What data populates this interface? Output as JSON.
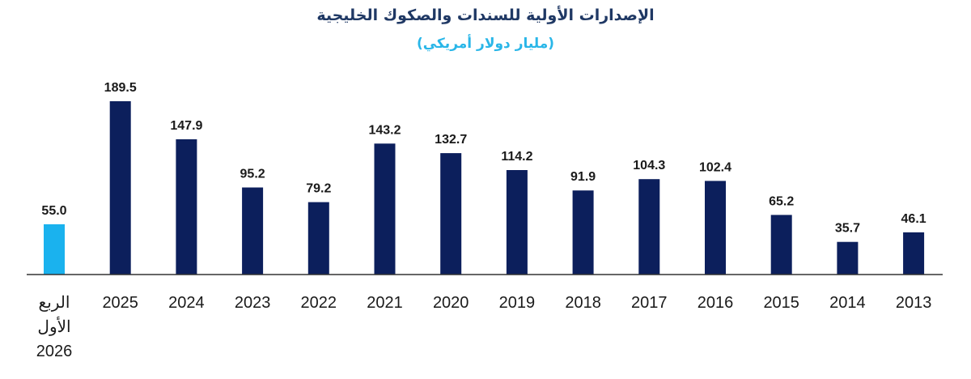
{
  "chart_data": {
    "type": "bar",
    "title": "الإصدارات الأولية للسندات والصكوك الخليجية",
    "subtitle": "(مليار دولار أمريكي)",
    "categories": [
      "الربع الأول 2026",
      "2025",
      "2024",
      "2023",
      "2022",
      "2021",
      "2020",
      "2019",
      "2018",
      "2017",
      "2016",
      "2015",
      "2014",
      "2013"
    ],
    "category_lines": [
      [
        "الربع",
        "الأول",
        "2026"
      ],
      [
        "2025"
      ],
      [
        "2024"
      ],
      [
        "2023"
      ],
      [
        "2022"
      ],
      [
        "2021"
      ],
      [
        "2020"
      ],
      [
        "2019"
      ],
      [
        "2018"
      ],
      [
        "2017"
      ],
      [
        "2016"
      ],
      [
        "2015"
      ],
      [
        "2014"
      ],
      [
        "2013"
      ]
    ],
    "values": [
      55.0,
      189.5,
      147.9,
      95.2,
      79.2,
      143.2,
      132.7,
      114.2,
      91.9,
      104.3,
      102.4,
      65.2,
      35.7,
      46.1
    ],
    "value_labels": [
      "55.0",
      "189.5",
      "147.9",
      "95.2",
      "79.2",
      "143.2",
      "132.7",
      "114.2",
      "91.9",
      "104.3",
      "102.4",
      "65.2",
      "35.7",
      "46.1"
    ],
    "colors": [
      "#1ab2ee",
      "#0c1f5c",
      "#0c1f5c",
      "#0c1f5c",
      "#0c1f5c",
      "#0c1f5c",
      "#0c1f5c",
      "#0c1f5c",
      "#0c1f5c",
      "#0c1f5c",
      "#0c1f5c",
      "#0c1f5c",
      "#0c1f5c",
      "#0c1f5c"
    ],
    "axis_color": "#333333",
    "ylim": [
      0,
      200
    ],
    "grid": false,
    "legend": "none"
  }
}
